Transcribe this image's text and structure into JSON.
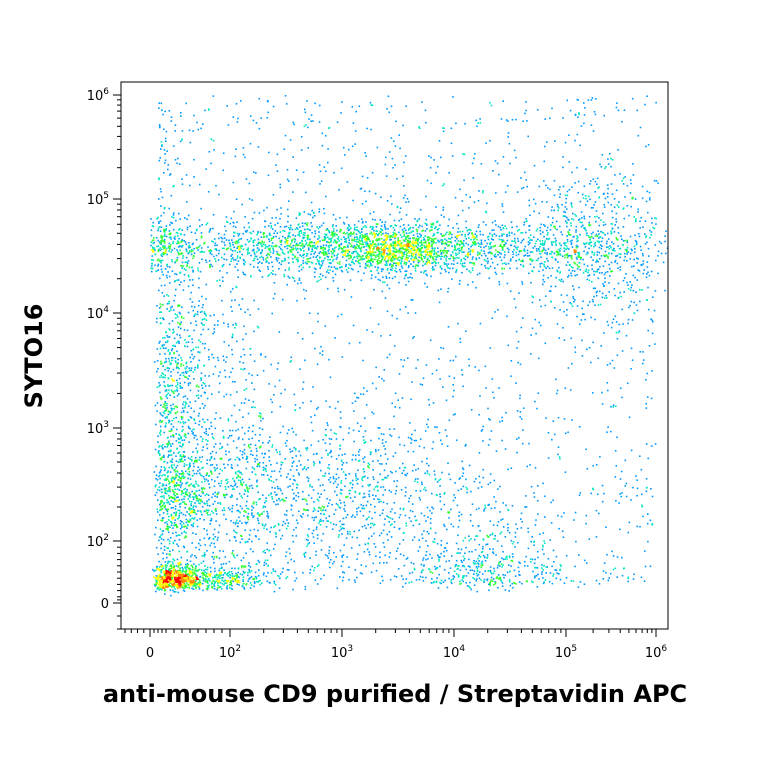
{
  "chart_data": {
    "type": "scatter",
    "subtype": "flow-cytometry-density-dot-plot",
    "xlabel": "anti-mouse CD9 purified / Streptavidin APC",
    "ylabel": "SYTO16",
    "x_scale": "biexponential",
    "y_scale": "biexponential",
    "xlim": [
      -20,
      1200000
    ],
    "ylim": [
      -10,
      1300000
    ],
    "x_ticks": [
      {
        "value": 0,
        "base": "0",
        "exp": ""
      },
      {
        "value": 100,
        "base": "10",
        "exp": "2"
      },
      {
        "value": 1000,
        "base": "10",
        "exp": "3"
      },
      {
        "value": 10000,
        "base": "10",
        "exp": "4"
      },
      {
        "value": 100000,
        "base": "10",
        "exp": "5"
      },
      {
        "value": 1000000,
        "base": "10",
        "exp": "6"
      }
    ],
    "y_ticks": [
      {
        "value": 0,
        "base": "0",
        "exp": ""
      },
      {
        "value": 100,
        "base": "10",
        "exp": "2"
      },
      {
        "value": 1000,
        "base": "10",
        "exp": "3"
      },
      {
        "value": 10000,
        "base": "10",
        "exp": "4"
      },
      {
        "value": 100000,
        "base": "10",
        "exp": "5"
      },
      {
        "value": 1000000,
        "base": "10",
        "exp": "6"
      }
    ],
    "density_colormap": [
      "#0000cc",
      "#0099ff",
      "#00e5c0",
      "#33ff33",
      "#ffff00",
      "#ff8800",
      "#ff0000"
    ],
    "populations": [
      {
        "x_center": 40,
        "y_center": 40,
        "x_spread": 0.35,
        "y_spread": 0.12,
        "weight": 900,
        "peak": true
      },
      {
        "x_center": 1500,
        "y_center": 38000,
        "x_spread": 1.1,
        "y_spread": 0.12,
        "weight": 2200,
        "peak": true
      },
      {
        "x_center": 3000,
        "y_center": 36000,
        "x_spread": 0.25,
        "y_spread": 0.1,
        "weight": 500,
        "peak": true
      },
      {
        "x_center": 200000,
        "y_center": 40000,
        "x_spread": 0.4,
        "y_spread": 0.3,
        "weight": 500,
        "peak": false
      },
      {
        "x_center": 50,
        "y_center": 250,
        "x_spread": 0.35,
        "y_spread": 0.25,
        "weight": 700,
        "peak": false
      },
      {
        "x_center": 800,
        "y_center": 250,
        "x_spread": 0.7,
        "y_spread": 0.35,
        "weight": 900,
        "peak": false
      },
      {
        "x_center": 40,
        "y_center": 2500,
        "x_spread": 0.3,
        "y_spread": 0.5,
        "weight": 600,
        "peak": false
      },
      {
        "x_center": 20000,
        "y_center": 60,
        "x_spread": 0.35,
        "y_spread": 0.2,
        "weight": 350,
        "peak": false
      }
    ]
  }
}
